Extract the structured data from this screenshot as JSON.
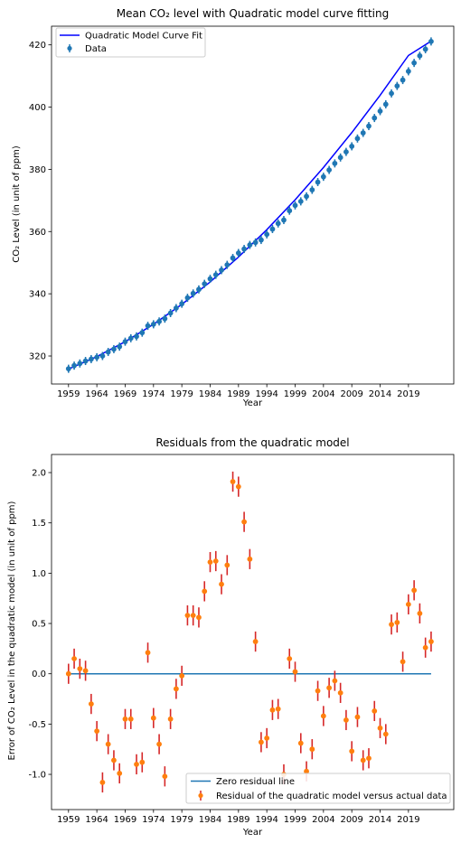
{
  "chart_data": [
    {
      "type": "scatter",
      "title": "Mean CO₂ level with Quadratic model curve fitting",
      "xlabel": "Year",
      "ylabel": "CO₂ Level (in unit of ppm)",
      "xlim": [
        1956,
        2027
      ],
      "ylim": [
        311,
        426
      ],
      "xticks": [
        1959,
        1964,
        1969,
        1974,
        1979,
        1984,
        1989,
        1994,
        1999,
        2004,
        2009,
        2014,
        2019
      ],
      "yticks": [
        320,
        340,
        360,
        380,
        400,
        420
      ],
      "legend_position": "top-left",
      "grid": false,
      "series": [
        {
          "name": "Quadratic Model Curve Fit",
          "kind": "line",
          "color": "#0000ff",
          "x": [
            1959,
            1964,
            1969,
            1974,
            1979,
            1984,
            1989,
            1994,
            1999,
            2004,
            2009,
            2014,
            2019,
            2023
          ],
          "y": [
            315.8,
            319.8,
            324.6,
            330.2,
            336.6,
            343.8,
            351.8,
            360.6,
            370.2,
            380.6,
            391.8,
            403.8,
            416.6,
            421.2
          ]
        },
        {
          "name": "Data",
          "kind": "errorbar",
          "color": "#1f77b4",
          "x": [
            1959,
            1960,
            1961,
            1962,
            1963,
            1964,
            1965,
            1966,
            1967,
            1968,
            1969,
            1970,
            1971,
            1972,
            1973,
            1974,
            1975,
            1976,
            1977,
            1978,
            1979,
            1980,
            1981,
            1982,
            1983,
            1984,
            1985,
            1986,
            1987,
            1988,
            1989,
            1990,
            1991,
            1992,
            1993,
            1994,
            1995,
            1996,
            1997,
            1998,
            1999,
            2000,
            2001,
            2002,
            2003,
            2004,
            2005,
            2006,
            2007,
            2008,
            2009,
            2010,
            2011,
            2012,
            2013,
            2014,
            2015,
            2016,
            2017,
            2018,
            2019,
            2020,
            2021,
            2022,
            2023
          ],
          "y": [
            315.9,
            316.9,
            317.6,
            318.4,
            319.0,
            319.6,
            320.0,
            321.3,
            322.2,
            323.0,
            324.6,
            325.7,
            326.3,
            327.5,
            329.7,
            330.2,
            331.1,
            332.0,
            333.8,
            335.4,
            336.8,
            338.7,
            340.1,
            341.4,
            343.2,
            344.8,
            346.1,
            347.6,
            349.3,
            351.5,
            353.1,
            354.4,
            355.7,
            356.5,
            357.3,
            359.1,
            360.8,
            362.6,
            363.7,
            366.7,
            368.4,
            369.7,
            371.3,
            373.4,
            375.9,
            377.6,
            379.8,
            381.9,
            383.8,
            385.6,
            387.4,
            389.9,
            391.7,
            393.9,
            396.5,
            398.7,
            400.9,
            404.4,
            406.8,
            408.7,
            411.5,
            414.2,
            416.5,
            418.6,
            421.1
          ]
        }
      ]
    },
    {
      "type": "scatter",
      "title": "Residuals from the quadratic model",
      "xlabel": "Year",
      "ylabel": "Error of CO₂ Level in the quadratic model (in unit of ppm)",
      "xlim": [
        1956,
        2027
      ],
      "ylim": [
        -1.35,
        2.18
      ],
      "xticks": [
        1959,
        1964,
        1969,
        1974,
        1979,
        1984,
        1989,
        1994,
        1999,
        2004,
        2009,
        2014,
        2019
      ],
      "yticks": [
        -1.0,
        -0.5,
        0.0,
        0.5,
        1.0,
        1.5,
        2.0
      ],
      "legend_position": "bottom-right",
      "grid": false,
      "error": 0.1,
      "series": [
        {
          "name": "Zero residual line",
          "kind": "line",
          "color": "#1f77b4",
          "x": [
            1959,
            2023
          ],
          "y": [
            0,
            0
          ]
        },
        {
          "name": "Residual of the quadratic model versus actual data",
          "kind": "errorbar",
          "color": "#ff7f0e",
          "errcolor": "#d62728",
          "x": [
            1959,
            1960,
            1961,
            1962,
            1963,
            1964,
            1965,
            1966,
            1967,
            1968,
            1969,
            1970,
            1971,
            1972,
            1973,
            1974,
            1975,
            1976,
            1977,
            1978,
            1979,
            1980,
            1981,
            1982,
            1983,
            1984,
            1985,
            1986,
            1987,
            1988,
            1989,
            1990,
            1991,
            1992,
            1993,
            1994,
            1995,
            1996,
            1997,
            1998,
            1999,
            2000,
            2001,
            2002,
            2003,
            2004,
            2005,
            2006,
            2007,
            2008,
            2009,
            2010,
            2011,
            2012,
            2013,
            2014,
            2015,
            2016,
            2017,
            2018,
            2019,
            2020,
            2021,
            2022,
            2023
          ],
          "y": [
            0.0,
            0.15,
            0.05,
            0.03,
            -0.3,
            -0.57,
            -1.08,
            -0.7,
            -0.86,
            -0.99,
            -0.45,
            -0.45,
            -0.9,
            -0.88,
            0.21,
            -0.44,
            -0.7,
            -1.02,
            -0.45,
            -0.15,
            -0.02,
            0.58,
            0.58,
            0.56,
            0.82,
            1.11,
            1.12,
            0.89,
            1.08,
            1.91,
            1.86,
            1.51,
            1.14,
            0.32,
            -0.68,
            -0.64,
            -0.36,
            -0.35,
            -1.0,
            0.15,
            0.02,
            -0.69,
            -0.97,
            -0.75,
            -0.17,
            -0.42,
            -0.14,
            -0.07,
            -0.19,
            -0.46,
            -0.77,
            -0.43,
            -0.86,
            -0.84,
            -0.37,
            -0.54,
            -0.6,
            0.49,
            0.51,
            0.12,
            0.69,
            0.83,
            0.6,
            0.26,
            0.32
          ]
        }
      ]
    }
  ]
}
